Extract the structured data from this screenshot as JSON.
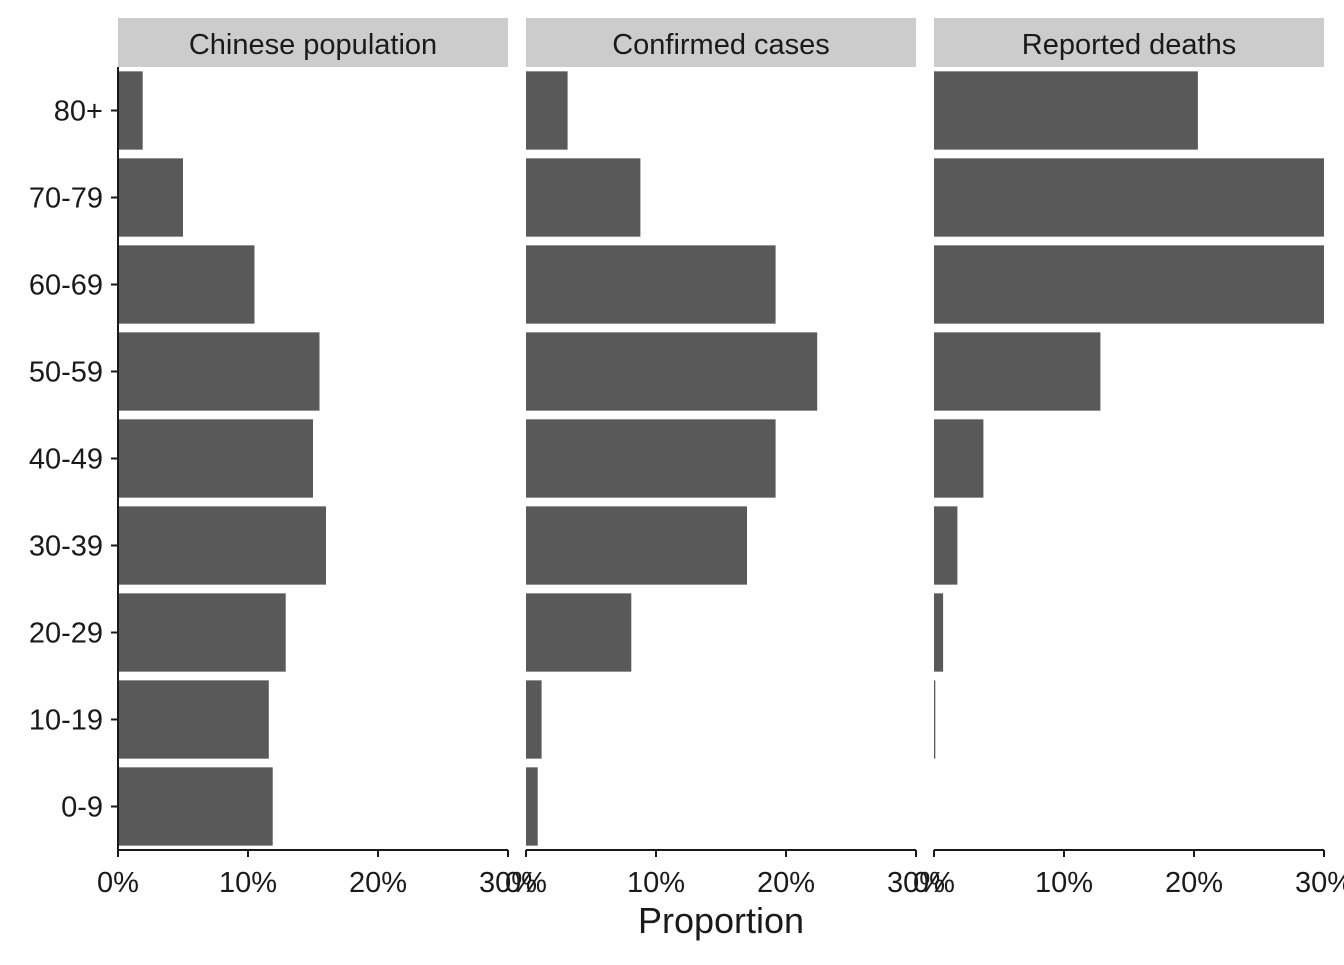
{
  "chart_data": {
    "type": "bar",
    "orientation": "horizontal",
    "categories": [
      "80+",
      "70-79",
      "60-69",
      "50-59",
      "40-49",
      "30-39",
      "20-29",
      "10-19",
      "0-9"
    ],
    "xlabel": "Proportion",
    "ylabel": "",
    "xlim": [
      0,
      0.3
    ],
    "xticks": [
      0,
      0.1,
      0.2,
      0.3
    ],
    "xtick_labels": [
      "0%",
      "10%",
      "20%",
      "30%"
    ],
    "bar_color": "#595959",
    "strip_color": "#cccccc",
    "grid": false,
    "panels": [
      {
        "title": "Chinese population",
        "values": [
          0.019,
          0.05,
          0.105,
          0.155,
          0.15,
          0.16,
          0.129,
          0.116,
          0.119
        ]
      },
      {
        "title": "Confirmed cases",
        "values": [
          0.032,
          0.088,
          0.192,
          0.224,
          0.192,
          0.17,
          0.081,
          0.012,
          0.009
        ]
      },
      {
        "title": "Reported deaths",
        "values": [
          0.203,
          0.305,
          0.302,
          0.128,
          0.038,
          0.018,
          0.007,
          0.001,
          0
        ]
      }
    ]
  }
}
